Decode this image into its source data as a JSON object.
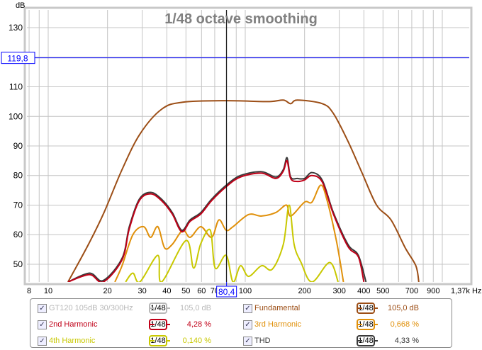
{
  "chart_data": {
    "type": "line",
    "title": "1/48 octave smoothing",
    "ylabel": "dB",
    "xlabel": "Hz",
    "xscale": "log",
    "xlim": [
      7.8,
      1370
    ],
    "ylim": [
      44,
      136
    ],
    "y_ticks": [
      "130",
      "110",
      "100",
      "90",
      "80",
      "70",
      "60",
      "50"
    ],
    "x_ticks": [
      {
        "v": 8,
        "t": "8"
      },
      {
        "v": 10,
        "t": "10"
      },
      {
        "v": 20,
        "t": "20"
      },
      {
        "v": 30,
        "t": "30"
      },
      {
        "v": 40,
        "t": "40"
      },
      {
        "v": 50,
        "t": "50"
      },
      {
        "v": 60,
        "t": "60"
      },
      {
        "v": 70,
        "t": "70"
      },
      {
        "v": 100,
        "t": "100"
      },
      {
        "v": 200,
        "t": "200"
      },
      {
        "v": 300,
        "t": "300"
      },
      {
        "v": 400,
        "t": "400"
      },
      {
        "v": 500,
        "t": "500"
      },
      {
        "v": 700,
        "t": "700"
      },
      {
        "v": 900,
        "t": "900"
      },
      {
        "v": 1370,
        "t": "1,37k Hz"
      }
    ],
    "cursor": {
      "x": 80.4,
      "x_label": "80,4",
      "y": 119.8,
      "y_label": "119,8"
    },
    "grid": true,
    "series": [
      {
        "name": "Fundamental",
        "color": "#9c4e16",
        "points": [
          [
            12.6,
            44
          ],
          [
            16,
            56.7
          ],
          [
            19.2,
            67.5
          ],
          [
            23.7,
            82
          ],
          [
            29.2,
            94
          ],
          [
            37.6,
            102.4
          ],
          [
            48.2,
            104.8
          ],
          [
            80,
            105.3
          ],
          [
            131,
            105
          ],
          [
            156,
            105.5
          ],
          [
            170,
            104.3
          ],
          [
            184,
            105.5
          ],
          [
            246,
            104.3
          ],
          [
            280,
            101
          ],
          [
            332,
            91.6
          ],
          [
            392,
            80.8
          ],
          [
            464,
            70
          ],
          [
            549,
            65
          ],
          [
            649,
            55.5
          ],
          [
            734,
            49.5
          ],
          [
            760,
            44
          ]
        ]
      },
      {
        "name": "3rd Harmonic",
        "color": "#e0900a",
        "points": [
          [
            21.8,
            44
          ],
          [
            23.7,
            49.5
          ],
          [
            26.9,
            60
          ],
          [
            30.5,
            62.7
          ],
          [
            33.1,
            59.1
          ],
          [
            36,
            62.7
          ],
          [
            39,
            55.5
          ],
          [
            42.6,
            56.7
          ],
          [
            48.2,
            61.5
          ],
          [
            52.5,
            59.1
          ],
          [
            59.5,
            62.7
          ],
          [
            67.5,
            59.1
          ],
          [
            73.5,
            65
          ],
          [
            80,
            61.5
          ],
          [
            86.7,
            62.7
          ],
          [
            104,
            66.8
          ],
          [
            121,
            66.3
          ],
          [
            143,
            67.5
          ],
          [
            162,
            70
          ],
          [
            170,
            66.3
          ],
          [
            200,
            71
          ],
          [
            218,
            71
          ],
          [
            241,
            76.7
          ],
          [
            258,
            72.5
          ],
          [
            290,
            58
          ],
          [
            315,
            44
          ]
        ]
      },
      {
        "name": "4th Harmonic",
        "color": "#c8c800",
        "points": [
          [
            24.7,
            44
          ],
          [
            26.9,
            47
          ],
          [
            29.2,
            44
          ],
          [
            36,
            53
          ],
          [
            37.6,
            44
          ],
          [
            50,
            58
          ],
          [
            54.7,
            48.7
          ],
          [
            59.5,
            57
          ],
          [
            66.5,
            61.5
          ],
          [
            70.4,
            48.7
          ],
          [
            80,
            53
          ],
          [
            86.7,
            44
          ],
          [
            94.6,
            49.5
          ],
          [
            104,
            45.9
          ],
          [
            121,
            49.5
          ],
          [
            137,
            48.3
          ],
          [
            156,
            56.7
          ],
          [
            167,
            70
          ],
          [
            177,
            56.7
          ],
          [
            192,
            50.6
          ],
          [
            218,
            44
          ],
          [
            268,
            50.6
          ],
          [
            296,
            44
          ]
        ]
      },
      {
        "name": "THD",
        "color": "#3a3a3a",
        "points": [
          [
            12.6,
            44
          ],
          [
            16.2,
            47
          ],
          [
            19,
            44.5
          ],
          [
            23.7,
            52
          ],
          [
            25.8,
            62.7
          ],
          [
            29,
            72
          ],
          [
            33.1,
            74.3
          ],
          [
            37.6,
            72
          ],
          [
            42.6,
            67.5
          ],
          [
            47.6,
            61.5
          ],
          [
            52.5,
            65
          ],
          [
            59.5,
            67.5
          ],
          [
            67.5,
            72
          ],
          [
            80,
            76.7
          ],
          [
            94.6,
            80
          ],
          [
            121,
            81.3
          ],
          [
            143,
            79.5
          ],
          [
            156,
            82
          ],
          [
            163,
            86
          ],
          [
            170,
            79.5
          ],
          [
            184,
            79
          ],
          [
            200,
            79
          ],
          [
            218,
            81
          ],
          [
            246,
            78.4
          ],
          [
            280,
            67.5
          ],
          [
            332,
            56.7
          ],
          [
            375,
            53
          ],
          [
            410,
            44
          ]
        ]
      },
      {
        "name": "2nd Harmonic",
        "color": "#c00018",
        "points": [
          [
            12.6,
            44
          ],
          [
            16.2,
            46.5
          ],
          [
            19,
            44
          ],
          [
            23.7,
            51.5
          ],
          [
            25.8,
            62
          ],
          [
            29,
            71.5
          ],
          [
            33.1,
            73.8
          ],
          [
            37.6,
            71.5
          ],
          [
            42.6,
            67
          ],
          [
            47.6,
            61
          ],
          [
            52.5,
            64.5
          ],
          [
            59.5,
            67
          ],
          [
            67.5,
            71.5
          ],
          [
            80,
            76.2
          ],
          [
            94.6,
            79.5
          ],
          [
            121,
            80.8
          ],
          [
            143,
            79
          ],
          [
            156,
            81.5
          ],
          [
            163,
            85
          ],
          [
            170,
            79
          ],
          [
            184,
            78
          ],
          [
            200,
            78.5
          ],
          [
            218,
            80
          ],
          [
            246,
            77.8
          ],
          [
            280,
            67
          ],
          [
            332,
            56
          ],
          [
            375,
            52.5
          ],
          [
            400,
            44
          ]
        ]
      }
    ]
  },
  "legend": [
    {
      "label": "GT120 105dB 30/300Hz",
      "smoothing": "1/48",
      "value": "105,0 dB",
      "color": "#b8b8b8",
      "checked": "✓"
    },
    {
      "label": "Fundamental",
      "smoothing": "1/48",
      "value": "105,0 dB",
      "color": "#9c4e16",
      "checked": "✓"
    },
    {
      "label": "2nd Harmonic",
      "smoothing": "1/48",
      "value": "4,28 %",
      "color": "#c00018",
      "checked": "✓"
    },
    {
      "label": "3rd Harmonic",
      "smoothing": "1/48",
      "value": "0,668 %",
      "color": "#e0900a",
      "checked": "✓"
    },
    {
      "label": "4th Harmonic",
      "smoothing": "1/48",
      "value": "0,140 %",
      "color": "#c8c800",
      "checked": "✓"
    },
    {
      "label": "THD",
      "smoothing": "1/48",
      "value": "4,33 %",
      "color": "#3a3a3a",
      "checked": "✓"
    }
  ]
}
